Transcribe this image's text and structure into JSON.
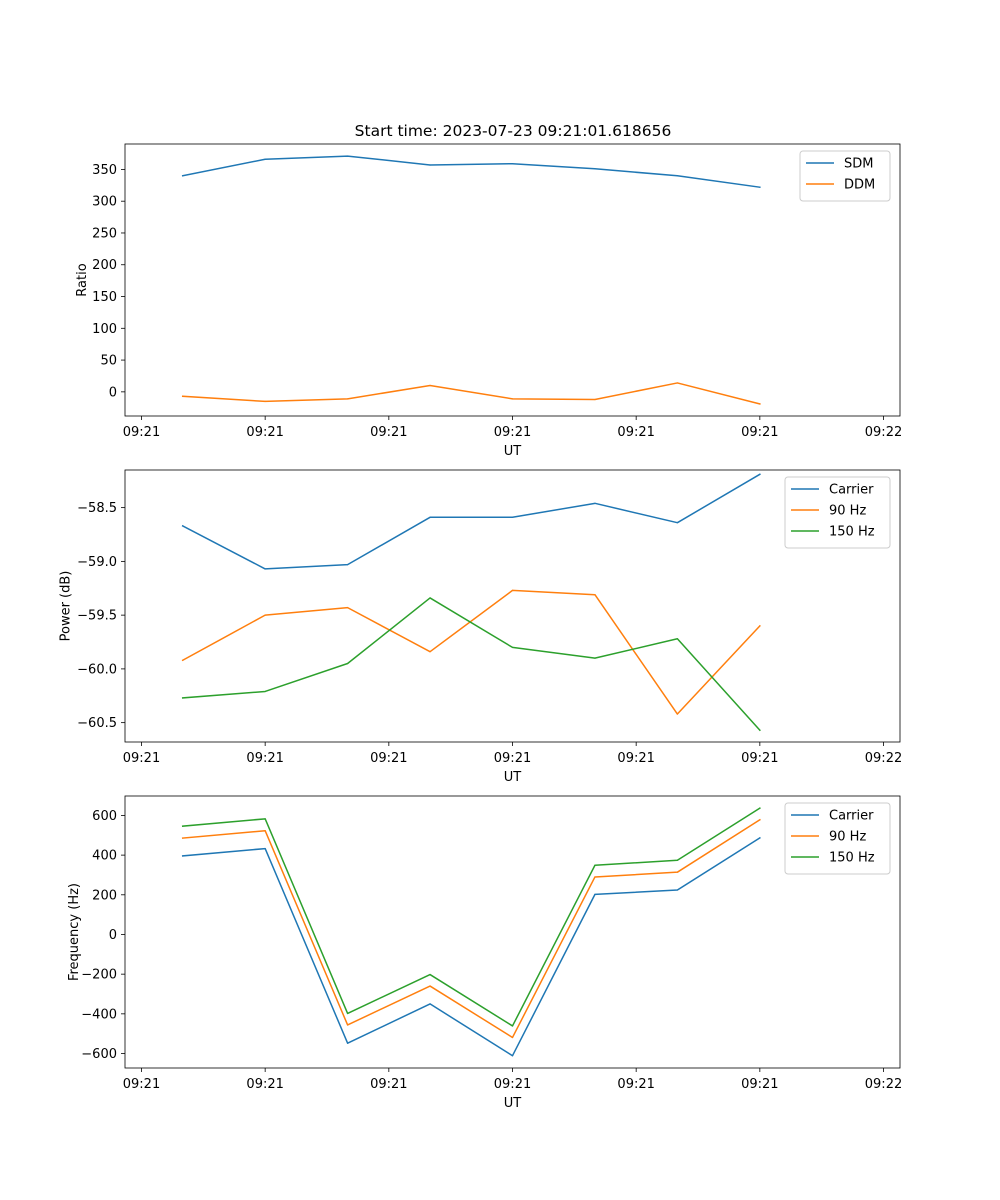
{
  "figure_title": "Start time: 2023-07-23 09:21:01.618656",
  "colors": {
    "blue": "#1f77b4",
    "orange": "#ff7f0e",
    "green": "#2ca02c"
  },
  "chart_data": [
    {
      "type": "line",
      "title": "Start time: 2023-07-23 09:21:01.618656",
      "xlabel": "UT",
      "ylabel": "Ratio",
      "x": [
        1,
        2,
        3,
        4,
        5,
        6,
        7,
        8
      ],
      "xlim": [
        0.3,
        9.7
      ],
      "x_ticks": [
        0.5,
        2,
        3.5,
        5,
        6.5,
        8,
        9.5
      ],
      "x_tick_labels": [
        "09:21",
        "09:21",
        "09:21",
        "09:21",
        "09:21",
        "09:21",
        "09:22"
      ],
      "ylim": [
        -38,
        390
      ],
      "y_ticks": [
        0,
        50,
        100,
        150,
        200,
        250,
        300,
        350
      ],
      "y_tick_labels": [
        "0",
        "50",
        "100",
        "150",
        "200",
        "250",
        "300",
        "350"
      ],
      "legend": "top-right",
      "series": [
        {
          "name": "SDM",
          "color": "#1f77b4",
          "values": [
            340,
            366,
            371,
            357,
            359,
            351,
            340,
            322
          ]
        },
        {
          "name": "DDM",
          "color": "#ff7f0e",
          "values": [
            -7,
            -15,
            -11,
            10,
            -11,
            -12,
            14,
            -19
          ]
        }
      ]
    },
    {
      "type": "line",
      "title": "",
      "xlabel": "UT",
      "ylabel": "Power (dB)",
      "x": [
        1,
        2,
        3,
        4,
        5,
        6,
        7,
        8
      ],
      "xlim": [
        0.3,
        9.7
      ],
      "x_ticks": [
        0.5,
        2,
        3.5,
        5,
        6.5,
        8,
        9.5
      ],
      "x_tick_labels": [
        "09:21",
        "09:21",
        "09:21",
        "09:21",
        "09:21",
        "09:21",
        "09:22"
      ],
      "ylim": [
        -60.68,
        -58.15
      ],
      "y_ticks": [
        -60.5,
        -60.0,
        -59.5,
        -59.0,
        -58.5
      ],
      "y_tick_labels": [
        "−60.5",
        "−60.0",
        "−59.5",
        "−59.0",
        "−58.5"
      ],
      "legend": "top-right",
      "series": [
        {
          "name": "Carrier",
          "color": "#1f77b4",
          "values": [
            -58.67,
            -59.07,
            -59.03,
            -58.59,
            -58.59,
            -58.46,
            -58.64,
            -58.19
          ]
        },
        {
          "name": "90 Hz",
          "color": "#ff7f0e",
          "values": [
            -59.92,
            -59.5,
            -59.43,
            -59.84,
            -59.27,
            -59.31,
            -60.42,
            -59.6
          ]
        },
        {
          "name": "150 Hz",
          "color": "#2ca02c",
          "values": [
            -60.27,
            -60.21,
            -59.95,
            -59.34,
            -59.8,
            -59.9,
            -59.72,
            -60.57
          ]
        }
      ]
    },
    {
      "type": "line",
      "title": "",
      "xlabel": "UT",
      "ylabel": "Frequency (Hz)",
      "x": [
        1,
        2,
        3,
        4,
        5,
        6,
        7,
        8
      ],
      "xlim": [
        0.3,
        9.7
      ],
      "x_ticks": [
        0.5,
        2,
        3.5,
        5,
        6.5,
        8,
        9.5
      ],
      "x_tick_labels": [
        "09:21",
        "09:21",
        "09:21",
        "09:21",
        "09:21",
        "09:21",
        "09:22"
      ],
      "ylim": [
        -673,
        698
      ],
      "y_ticks": [
        -600,
        -400,
        -200,
        0,
        200,
        400,
        600
      ],
      "y_tick_labels": [
        "−600",
        "−400",
        "−200",
        "0",
        "200",
        "400",
        "600"
      ],
      "legend": "top-right",
      "series": [
        {
          "name": "Carrier",
          "color": "#1f77b4",
          "values": [
            396,
            433,
            -548,
            -350,
            -611,
            202,
            224,
            487
          ]
        },
        {
          "name": "90 Hz",
          "color": "#ff7f0e",
          "values": [
            486,
            523,
            -456,
            -260,
            -519,
            290,
            314,
            578
          ]
        },
        {
          "name": "150 Hz",
          "color": "#2ca02c",
          "values": [
            546,
            583,
            -398,
            -202,
            -461,
            349,
            374,
            637
          ]
        }
      ]
    }
  ]
}
